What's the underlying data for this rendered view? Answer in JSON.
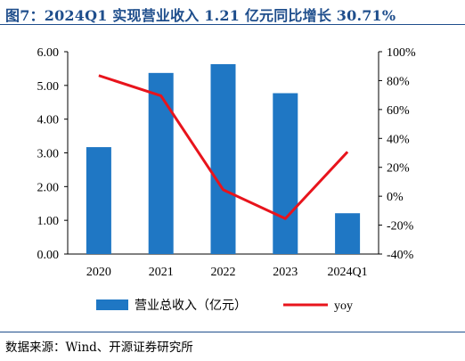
{
  "title": "图7：2024Q1 实现营业收入 1.21 亿元同比增长 30.71%",
  "source": "数据来源：Wind、开源证券研究所",
  "chart_data": {
    "type": "bar",
    "categories": [
      "2020",
      "2021",
      "2022",
      "2023",
      "2024Q1"
    ],
    "series": [
      {
        "name": "营业总收入（亿元）",
        "type": "bar",
        "axis": "left",
        "values": [
          3.17,
          5.37,
          5.63,
          4.77,
          1.21
        ],
        "color": "#1f77c4"
      },
      {
        "name": "yoy",
        "type": "line",
        "axis": "right",
        "values": [
          83.5,
          69.5,
          4.5,
          -15.5,
          30.71
        ],
        "color": "#e8141c"
      }
    ],
    "y_left": {
      "lim": [
        0,
        6
      ],
      "ticks": [
        "0.00",
        "1.00",
        "2.00",
        "3.00",
        "4.00",
        "5.00",
        "6.00"
      ]
    },
    "y_right": {
      "lim": [
        -40,
        100
      ],
      "ticks": [
        "-40%",
        "-20%",
        "0%",
        "20%",
        "40%",
        "60%",
        "80%",
        "100%"
      ]
    },
    "legend_position": "bottom",
    "grid": false
  }
}
